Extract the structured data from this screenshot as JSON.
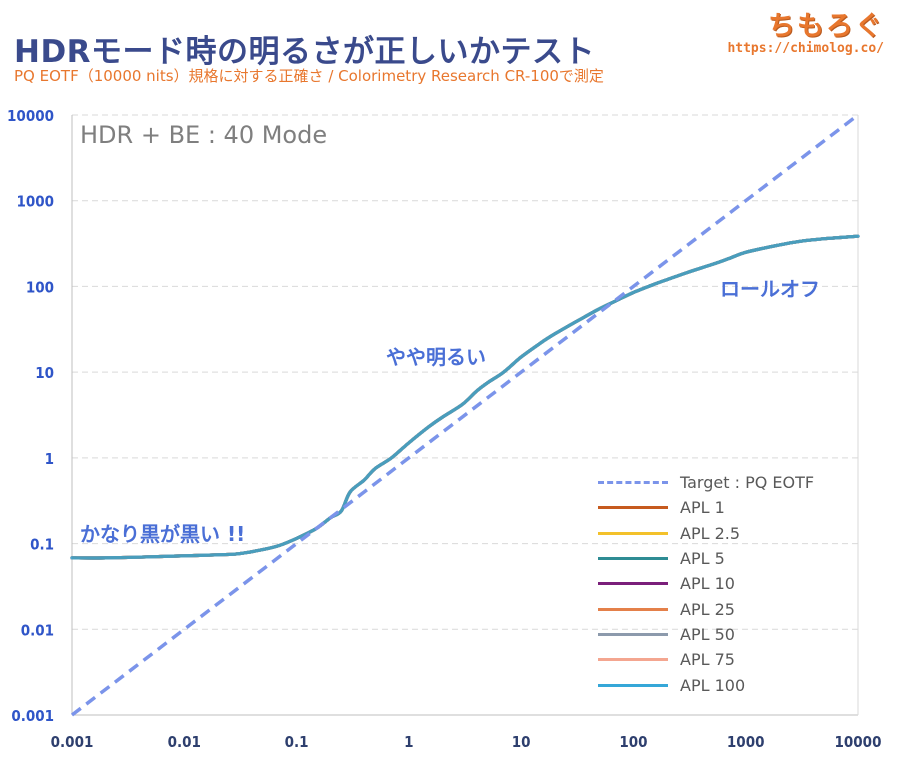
{
  "header": {
    "title": "HDRモード時の明るさが正しいかテスト",
    "subtitle": "PQ EOTF（10000 nits）規格に対する正確さ / Colorimetry Research CR-100で測定",
    "brand_name": "ちもろぐ",
    "brand_url": "https://chimolog.co/"
  },
  "annotations": {
    "mode": "HDR + BE : 40 Mode",
    "black": "かなり黒が黒い !!",
    "bright": "やや明るい",
    "rolloff": "ロールオフ"
  },
  "colors": {
    "target": "#7b94ea",
    "apl1": "#c65a1e",
    "apl2_5": "#f3c12a",
    "apl5": "#2e8c94",
    "apl10": "#7a1f7a",
    "apl25": "#e4804a",
    "apl50": "#8c9aac",
    "apl75": "#f4a690",
    "apl100": "#35a7d8",
    "axis_tick": "#2f55c8",
    "grid": "#d9d9d9"
  },
  "chart_data": {
    "type": "line",
    "xscale": "log",
    "yscale": "log",
    "xlim": [
      0.001,
      10000
    ],
    "ylim": [
      0.001,
      10000
    ],
    "x_ticks": [
      "0.001",
      "0.01",
      "0.1",
      "1",
      "10",
      "100",
      "1000",
      "10000"
    ],
    "y_ticks": [
      "0.001",
      "0.01",
      "0.1",
      "1",
      "10",
      "100",
      "1000",
      "10000"
    ],
    "legend_position": "bottom-right",
    "grid": true,
    "series": [
      {
        "name": "Target : PQ EOTF",
        "style": "dashed",
        "color_key": "target",
        "x": [
          0.001,
          10000
        ],
        "y": [
          0.001,
          10000
        ]
      },
      {
        "name": "APL 1",
        "color_key": "apl1"
      },
      {
        "name": "APL 2.5",
        "color_key": "apl2_5"
      },
      {
        "name": "APL 5",
        "color_key": "apl5"
      },
      {
        "name": "APL 10",
        "color_key": "apl10"
      },
      {
        "name": "APL 25",
        "color_key": "apl25"
      },
      {
        "name": "APL 50",
        "color_key": "apl50"
      },
      {
        "name": "APL 75",
        "color_key": "apl75"
      },
      {
        "name": "APL 100",
        "color_key": "apl100"
      }
    ],
    "measured_curve": {
      "x": [
        0.001,
        0.002,
        0.005,
        0.01,
        0.02,
        0.03,
        0.05,
        0.07,
        0.1,
        0.15,
        0.2,
        0.25,
        0.3,
        0.4,
        0.5,
        0.7,
        1,
        1.5,
        2,
        3,
        4,
        5,
        7,
        10,
        15,
        20,
        30,
        50,
        70,
        100,
        150,
        200,
        300,
        500,
        700,
        1000,
        2000,
        3000,
        5000,
        10000
      ],
      "y": [
        0.068,
        0.068,
        0.07,
        0.072,
        0.074,
        0.076,
        0.085,
        0.095,
        0.115,
        0.15,
        0.2,
        0.24,
        0.4,
        0.55,
        0.75,
        1.0,
        1.5,
        2.3,
        3.0,
        4.2,
        6.0,
        7.5,
        10,
        15,
        22,
        28,
        38,
        55,
        68,
        85,
        105,
        120,
        145,
        180,
        210,
        250,
        305,
        335,
        360,
        385
      ]
    }
  }
}
